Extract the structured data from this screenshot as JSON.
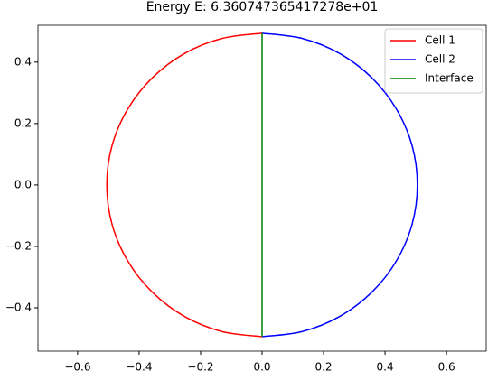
{
  "chart_data": {
    "type": "line",
    "title": "Energy E: 6.360747365417278e+01",
    "xlim": [
      -0.729,
      0.729
    ],
    "ylim": [
      -0.541,
      0.52
    ],
    "xticks": [
      {
        "value": -0.6,
        "label": "−0.6"
      },
      {
        "value": -0.4,
        "label": "−0.4"
      },
      {
        "value": -0.2,
        "label": "−0.2"
      },
      {
        "value": 0,
        "label": "0.0"
      },
      0.2,
      0.4,
      0.6
    ],
    "yticks": [
      {
        "value": -0.4,
        "label": "−0.4"
      },
      {
        "value": -0.2,
        "label": "−0.2"
      },
      {
        "value": 0,
        "label": "0.0"
      },
      0.2,
      0.4
    ],
    "legend": "upper right",
    "series": [
      {
        "name": "Cell 1",
        "color": "#ff0000",
        "x": [
          0,
          -0.131,
          -0.2525,
          -0.357,
          -0.437,
          -0.488,
          -0.505,
          -0.488,
          -0.437,
          -0.357,
          -0.2525,
          -0.131,
          0
        ],
        "y": [
          0.494,
          0.477,
          0.428,
          0.349,
          0.247,
          0.128,
          0,
          -0.128,
          -0.247,
          -0.349,
          -0.428,
          -0.477,
          -0.494
        ]
      },
      {
        "name": "Cell 2",
        "color": "#0000ff",
        "x": [
          0,
          0.131,
          0.2525,
          0.357,
          0.437,
          0.488,
          0.505,
          0.488,
          0.437,
          0.357,
          0.2525,
          0.131,
          0
        ],
        "y": [
          0.494,
          0.477,
          0.428,
          0.349,
          0.247,
          0.128,
          0,
          -0.128,
          -0.247,
          -0.349,
          -0.428,
          -0.477,
          -0.494
        ]
      },
      {
        "name": "Interface",
        "color": "#008000",
        "x": [
          0,
          0
        ],
        "y": [
          0.494,
          -0.494
        ]
      }
    ]
  }
}
